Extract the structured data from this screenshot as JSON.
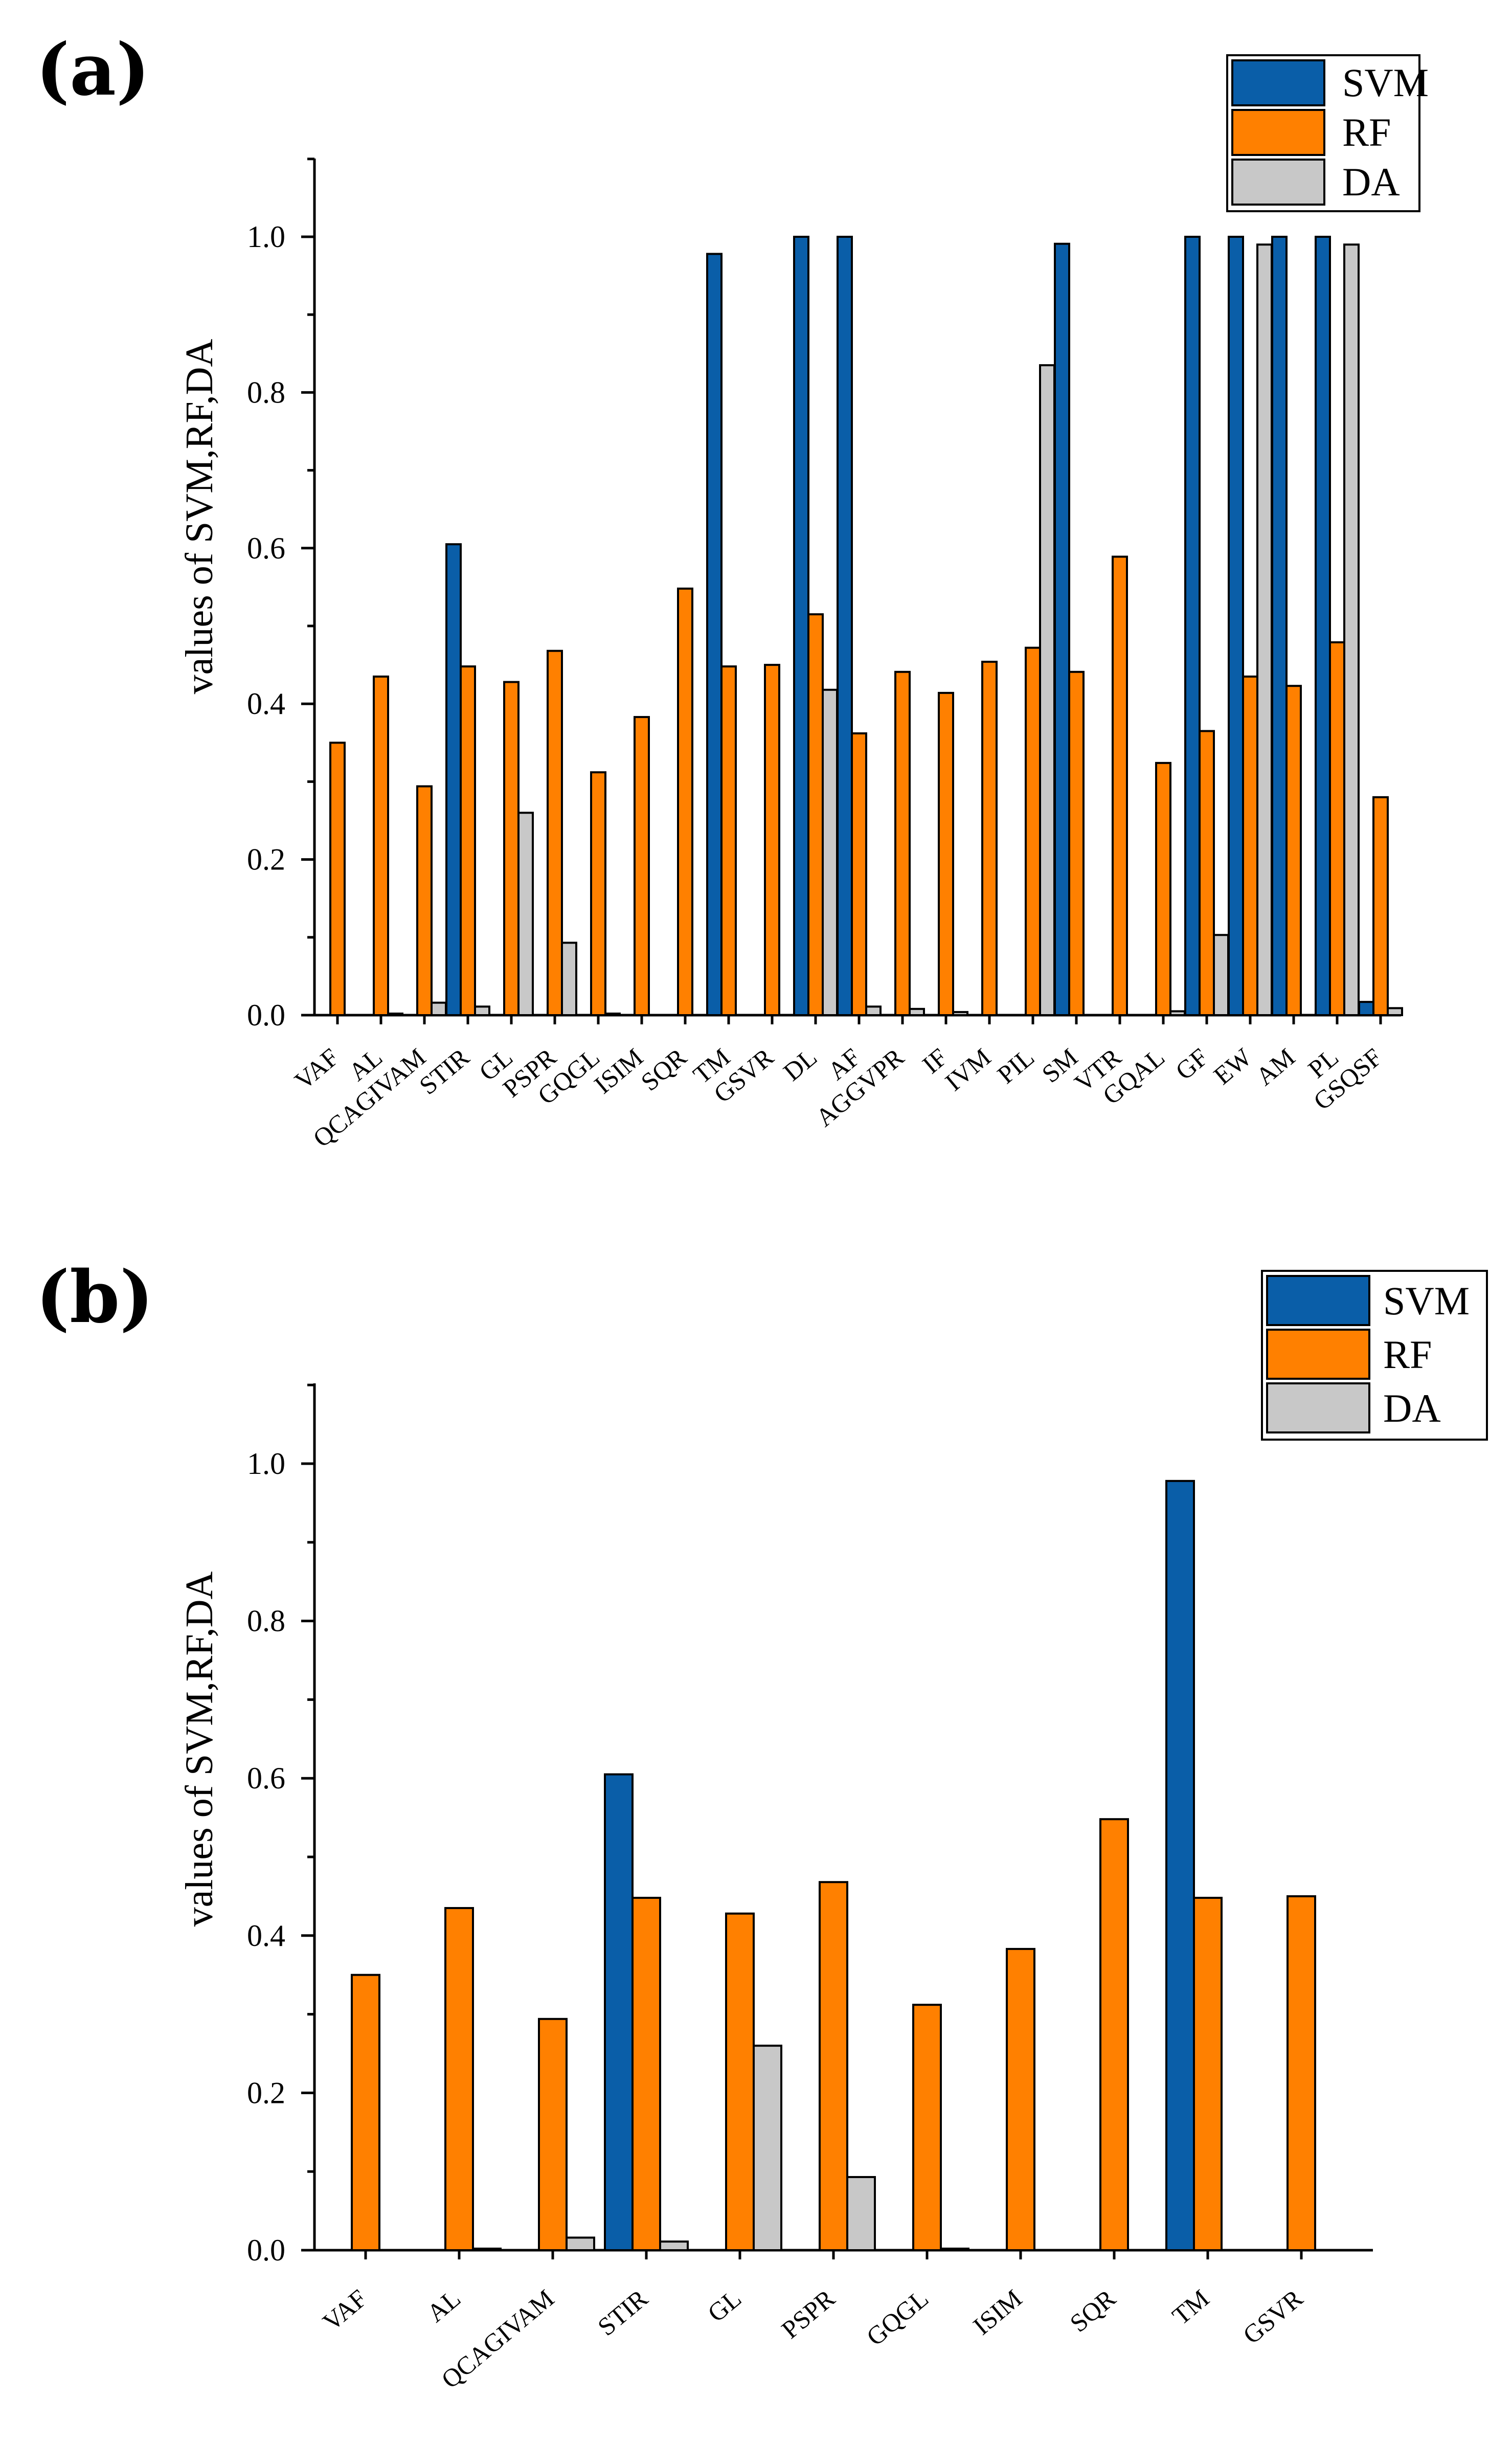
{
  "colors": {
    "SVM": "#0A5EA8",
    "RF": "#FF8000",
    "DA": "#C8C8C8"
  },
  "legend_entries": [
    "SVM",
    "RF",
    "DA"
  ],
  "chart_data": [
    {
      "panel": "(a)",
      "type": "bar",
      "ylabel": "values of SVM,RF,DA",
      "ylim": [
        0,
        1.1
      ],
      "yticks": [
        "0.0",
        "0.2",
        "0.4",
        "0.6",
        "0.8",
        "1.0"
      ],
      "legend": "top-right",
      "categories": [
        "VAF",
        "AL",
        "QCAGIVAM",
        "STIR",
        "GL",
        "PSPR",
        "GQGL",
        "ISIM",
        "SQR",
        "TM",
        "GSVR",
        "DL",
        "AF",
        "AGGVPR",
        "IF",
        "IVM",
        "PIL",
        "SM",
        "VTR",
        "GQAL",
        "GF",
        "EW",
        "AM",
        "PL",
        "GSQSF"
      ],
      "series": [
        {
          "name": "SVM",
          "values": [
            0,
            0,
            0,
            0.605,
            0,
            0,
            0,
            0,
            0,
            0.978,
            0,
            1.0,
            1.0,
            0,
            0,
            0,
            0,
            0.991,
            0,
            0,
            1.0,
            1.0,
            1.0,
            1.0,
            0.017
          ]
        },
        {
          "name": "RF",
          "values": [
            0.35,
            0.435,
            0.294,
            0.448,
            0.428,
            0.468,
            0.312,
            0.383,
            0.548,
            0.448,
            0.45,
            0.515,
            0.362,
            0.441,
            0.414,
            0.454,
            0.472,
            0.441,
            0.589,
            0.324,
            0.365,
            0.435,
            0.423,
            0.479,
            0.28
          ]
        },
        {
          "name": "DA",
          "values": [
            0,
            0.002,
            0.016,
            0.011,
            0.26,
            0.093,
            0.002,
            0,
            0,
            0,
            0,
            0.418,
            0.011,
            0.008,
            0.004,
            0,
            0.835,
            0,
            0,
            0.005,
            0.103,
            0.99,
            0,
            0.99,
            0.009
          ]
        }
      ]
    },
    {
      "panel": "(b)",
      "type": "bar",
      "ylabel": "values of SVM,RF,DA",
      "ylim": [
        0,
        1.1
      ],
      "yticks": [
        "0.0",
        "0.2",
        "0.4",
        "0.6",
        "0.8",
        "1.0"
      ],
      "legend": "top-right",
      "categories": [
        "VAF",
        "AL",
        "QCAGIVAM",
        "STIR",
        "GL",
        "PSPR",
        "GQGL",
        "ISIM",
        "SQR",
        "TM",
        "GSVR"
      ],
      "series": [
        {
          "name": "SVM",
          "values": [
            0,
            0,
            0,
            0.605,
            0,
            0,
            0,
            0,
            0,
            0.978,
            0
          ]
        },
        {
          "name": "RF",
          "values": [
            0.35,
            0.435,
            0.294,
            0.448,
            0.428,
            0.468,
            0.312,
            0.383,
            0.548,
            0.448,
            0.45
          ]
        },
        {
          "name": "DA",
          "values": [
            0,
            0.002,
            0.016,
            0.011,
            0.26,
            0.093,
            0.002,
            0,
            0,
            0,
            0
          ]
        }
      ]
    }
  ]
}
